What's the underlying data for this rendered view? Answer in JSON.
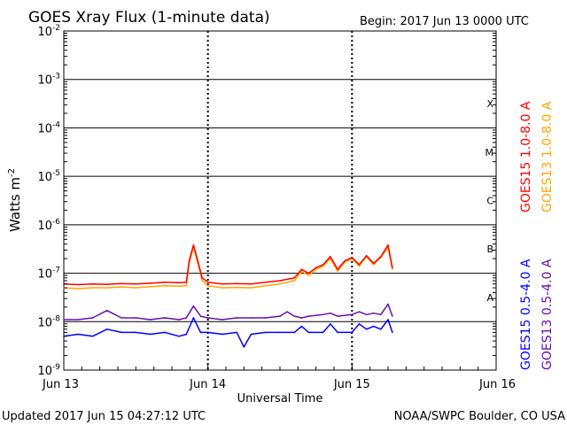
{
  "chart_data": {
    "type": "line",
    "title": "GOES Xray Flux (1-minute data)",
    "begin_label": "Begin:  2017 Jun 13 0000 UTC",
    "xlabel": "Universal Time",
    "ylabel": "Watts m",
    "ylabel_superscript": "-2",
    "footer_left": "Updated 2017 Jun 15 04:27:12 UTC",
    "footer_right": "NOAA/SWPC Boulder, CO USA",
    "x_ticks": [
      "Jun 13",
      "Jun 14",
      "Jun 15",
      "Jun 16"
    ],
    "x_range_days": [
      0,
      3
    ],
    "y_scale": "log",
    "y_range": [
      1e-09,
      0.01
    ],
    "y_ticks": [
      {
        "base": "10",
        "exp": "-2",
        "value": 0.01
      },
      {
        "base": "10",
        "exp": "-3",
        "value": 0.001
      },
      {
        "base": "10",
        "exp": "-4",
        "value": 0.0001
      },
      {
        "base": "10",
        "exp": "-5",
        "value": 1e-05
      },
      {
        "base": "10",
        "exp": "-6",
        "value": 1e-06
      },
      {
        "base": "10",
        "exp": "-7",
        "value": 1e-07
      },
      {
        "base": "10",
        "exp": "-8",
        "value": 1e-08
      },
      {
        "base": "10",
        "exp": "-9",
        "value": 1e-09
      }
    ],
    "flare_classes": [
      {
        "label": "X",
        "value": 0.000316
      },
      {
        "label": "M",
        "value": 3.16e-05
      },
      {
        "label": "C",
        "value": 3.16e-06
      },
      {
        "label": "B",
        "value": 3.16e-07
      },
      {
        "label": "A",
        "value": 3.16e-08
      }
    ],
    "series": [
      {
        "name": "GOES15 1.0-8.0 A",
        "color": "#ff0000",
        "x": [
          0.0,
          0.1,
          0.2,
          0.3,
          0.4,
          0.5,
          0.6,
          0.7,
          0.8,
          0.85,
          0.87,
          0.9,
          0.93,
          0.96,
          1.0,
          1.1,
          1.2,
          1.3,
          1.4,
          1.5,
          1.6,
          1.65,
          1.7,
          1.75,
          1.8,
          1.85,
          1.9,
          1.95,
          2.0,
          2.05,
          2.1,
          2.15,
          2.2,
          2.25,
          2.28
        ],
        "y": [
          6e-08,
          5.8e-08,
          6e-08,
          5.9e-08,
          6.1e-08,
          6e-08,
          6.2e-08,
          6.5e-08,
          6.4e-08,
          6.5e-08,
          1.8e-07,
          3.8e-07,
          1.8e-07,
          8e-08,
          6.5e-08,
          6e-08,
          6.1e-08,
          6e-08,
          6.5e-08,
          7e-08,
          8e-08,
          1.2e-07,
          1e-07,
          1.3e-07,
          1.5e-07,
          2.2e-07,
          1.2e-07,
          1.8e-07,
          2.1e-07,
          1.5e-07,
          2.3e-07,
          1.6e-07,
          2.2e-07,
          3.8e-07,
          1.3e-07
        ]
      },
      {
        "name": "GOES13 1.0-8.0 A",
        "color": "#ffa500",
        "x": [
          0.0,
          0.1,
          0.2,
          0.3,
          0.4,
          0.5,
          0.6,
          0.7,
          0.8,
          0.85,
          0.87,
          0.9,
          0.93,
          0.96,
          1.0,
          1.1,
          1.2,
          1.3,
          1.4,
          1.5,
          1.6,
          1.65,
          1.7,
          1.75,
          1.8,
          1.85,
          1.9,
          1.95,
          2.0,
          2.05,
          2.1,
          2.15,
          2.2,
          2.25,
          2.28
        ],
        "y": [
          5e-08,
          4.8e-08,
          5e-08,
          5e-08,
          5.2e-08,
          5e-08,
          5.3e-08,
          5.5e-08,
          5.4e-08,
          5.5e-08,
          1.6e-07,
          3.4e-07,
          1.6e-07,
          7e-08,
          5.5e-08,
          5e-08,
          5.1e-08,
          5e-08,
          5.5e-08,
          6e-08,
          7e-08,
          1.1e-07,
          9e-08,
          1.2e-07,
          1.4e-07,
          2e-07,
          1.1e-07,
          1.7e-07,
          2e-07,
          1.4e-07,
          2.2e-07,
          1.5e-07,
          2.1e-07,
          3.4e-07,
          1.2e-07
        ]
      },
      {
        "name": "GOES15 0.5-4.0 A",
        "color": "#0000ff",
        "x": [
          0.0,
          0.1,
          0.2,
          0.3,
          0.4,
          0.5,
          0.6,
          0.7,
          0.8,
          0.85,
          0.9,
          0.95,
          1.0,
          1.1,
          1.2,
          1.25,
          1.3,
          1.4,
          1.5,
          1.6,
          1.65,
          1.7,
          1.8,
          1.85,
          1.9,
          2.0,
          2.05,
          2.1,
          2.15,
          2.2,
          2.25,
          2.28
        ],
        "y": [
          5e-09,
          5.5e-09,
          5e-09,
          7e-09,
          6e-09,
          6e-09,
          5.5e-09,
          6e-09,
          5e-09,
          5.5e-09,
          1.2e-08,
          6e-09,
          6e-09,
          5.5e-09,
          6e-09,
          3e-09,
          5.5e-09,
          6e-09,
          6e-09,
          6e-09,
          8e-09,
          6e-09,
          6e-09,
          9e-09,
          6e-09,
          6e-09,
          9e-09,
          7e-09,
          8e-09,
          7e-09,
          1.1e-08,
          6e-09
        ]
      },
      {
        "name": "GOES13 0.5-4.0 A",
        "color": "#6a0dad",
        "x": [
          0.0,
          0.1,
          0.2,
          0.3,
          0.4,
          0.5,
          0.6,
          0.7,
          0.8,
          0.85,
          0.9,
          0.95,
          1.0,
          1.1,
          1.2,
          1.3,
          1.4,
          1.5,
          1.55,
          1.6,
          1.65,
          1.7,
          1.8,
          1.85,
          1.9,
          2.0,
          2.05,
          2.1,
          2.15,
          2.2,
          2.25,
          2.28
        ],
        "y": [
          1.1e-08,
          1.1e-08,
          1.2e-08,
          1.7e-08,
          1.2e-08,
          1.2e-08,
          1.1e-08,
          1.2e-08,
          1.1e-08,
          1.2e-08,
          2.1e-08,
          1.3e-08,
          1.2e-08,
          1.1e-08,
          1.2e-08,
          1.2e-08,
          1.2e-08,
          1.3e-08,
          1.6e-08,
          1.3e-08,
          1.2e-08,
          1.3e-08,
          1.4e-08,
          1.5e-08,
          1.3e-08,
          1.4e-08,
          1.6e-08,
          1.4e-08,
          1.5e-08,
          1.4e-08,
          2.3e-08,
          1.3e-08
        ]
      }
    ],
    "legend_right": [
      {
        "label": "GOES15 1.0-8.0 A",
        "color": "#ff0000"
      },
      {
        "label": "GOES13 1.0-8.0 A",
        "color": "#ffa500"
      }
    ],
    "legend_right_lower": [
      {
        "label": "GOES15 0.5-4.0 A",
        "color": "#0000ff"
      },
      {
        "label": "GOES13 0.5-4.0 A",
        "color": "#6a0dad"
      }
    ]
  }
}
